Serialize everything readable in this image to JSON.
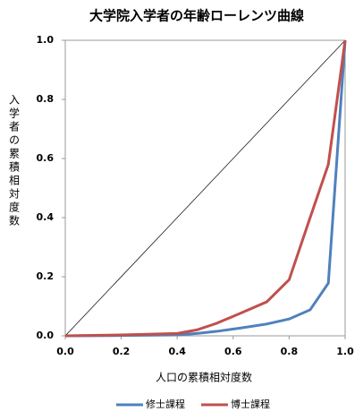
{
  "chart_data": {
    "type": "line",
    "title": "大学院入学者の年齢ローレンツ曲線",
    "x_label": "人口の累積相対度数",
    "y_label": "入学者の累積相対度数",
    "x": [
      0,
      0.2,
      0.4,
      0.47,
      0.54,
      0.63,
      0.72,
      0.8,
      0.875,
      0.94,
      1.0
    ],
    "series": [
      {
        "name": "修士課程",
        "color": "#4f81bd",
        "values": [
          0,
          0.001,
          0.003,
          0.008,
          0.015,
          0.027,
          0.04,
          0.057,
          0.088,
          0.178,
          1.0
        ]
      },
      {
        "name": "博士課程",
        "color": "#c0504d",
        "values": [
          0,
          0.003,
          0.008,
          0.02,
          0.042,
          0.078,
          0.115,
          0.19,
          0.4,
          0.58,
          1.0
        ]
      }
    ],
    "xlim": [
      0,
      1
    ],
    "ylim": [
      0,
      1
    ],
    "xticks": [
      {
        "value": 0,
        "label": "0.0"
      },
      {
        "value": 0.2,
        "label": "0.2"
      },
      {
        "value": 0.4,
        "label": "0.4"
      },
      {
        "value": 0.6,
        "label": "0.6"
      },
      {
        "value": 0.8,
        "label": "0.8"
      },
      {
        "value": 1,
        "label": "1.0"
      }
    ],
    "yticks": [
      {
        "value": 0,
        "label": "0.0"
      },
      {
        "value": 0.2,
        "label": "0.2"
      },
      {
        "value": 0.4,
        "label": "0.4"
      },
      {
        "value": 0.6,
        "label": "0.6"
      },
      {
        "value": 0.8,
        "label": "0.8"
      },
      {
        "value": 1,
        "label": "1.0"
      }
    ],
    "legend": "bottom"
  }
}
